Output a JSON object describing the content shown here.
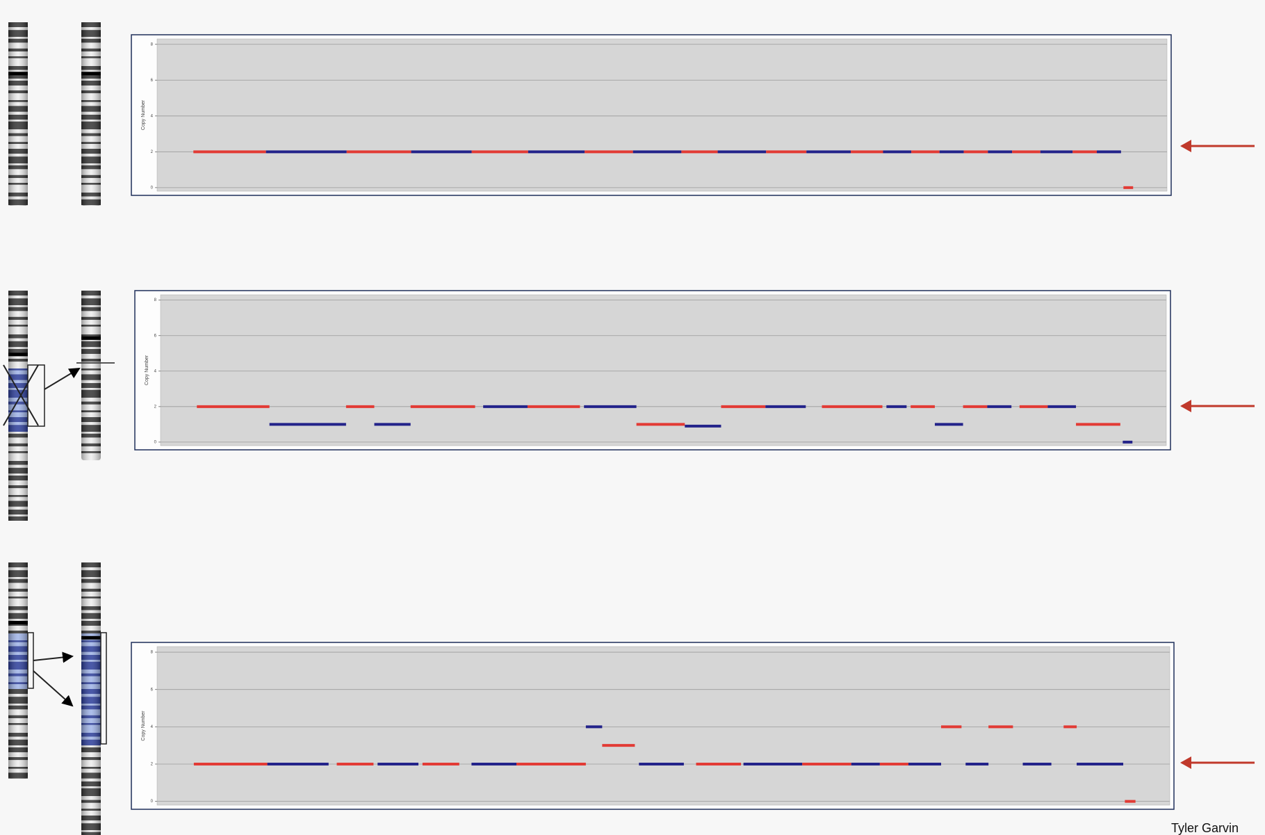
{
  "chart_data": [
    {
      "type": "segment",
      "ylabel": "Copy Number",
      "ylim": [
        -0.2,
        8.3
      ],
      "yticks": [
        0,
        2,
        4,
        6,
        8
      ],
      "grid": true,
      "xlim": [
        195,
        1447
      ],
      "colors": [
        "#e23b35",
        "#23238a"
      ],
      "segments": {
        "start": [
          240,
          330,
          430,
          510,
          585,
          655,
          725,
          785,
          845,
          890,
          950,
          1000,
          1055,
          1095,
          1130,
          1165,
          1195,
          1225,
          1255,
          1290,
          1330,
          1360,
          1393
        ],
        "end": [
          330,
          430,
          510,
          585,
          655,
          725,
          785,
          845,
          890,
          950,
          1000,
          1055,
          1095,
          1130,
          1165,
          1195,
          1225,
          1255,
          1290,
          1330,
          1360,
          1390,
          1405
        ],
        "values": [
          2,
          2,
          2,
          2,
          2,
          2,
          2,
          2,
          2,
          2,
          2,
          2,
          2,
          2,
          2,
          2,
          2,
          2,
          2,
          2,
          2,
          2,
          0
        ]
      }
    },
    {
      "type": "segment",
      "ylabel": "Copy Number",
      "ylim": [
        -0.2,
        8.3
      ],
      "yticks": [
        0,
        2,
        4,
        6,
        8
      ],
      "grid": true,
      "xlim": [
        200,
        1447
      ],
      "colors": [
        "#e23b35",
        "#23238a"
      ],
      "segments": {
        "start": [
          245,
          335,
          430,
          465,
          510,
          600,
          655,
          725,
          790,
          850,
          895,
          950,
          1020,
          1100,
          1130,
          1160,
          1195,
          1225,
          1265,
          1300,
          1335,
          1393
        ],
        "end": [
          335,
          430,
          465,
          510,
          590,
          655,
          720,
          790,
          850,
          895,
          950,
          1000,
          1095,
          1125,
          1160,
          1195,
          1225,
          1255,
          1300,
          1335,
          1390,
          1405
        ],
        "values": [
          2,
          1,
          2,
          1,
          2,
          2,
          2,
          2,
          1,
          0.9,
          2,
          2,
          2,
          2,
          2,
          1,
          2,
          2,
          2,
          2,
          1,
          0
        ]
      }
    },
    {
      "type": "segment",
      "ylabel": "Copy Number",
      "ylim": [
        -0.2,
        8.3
      ],
      "yticks": [
        0,
        2,
        4,
        6,
        8
      ],
      "grid": true,
      "xlim": [
        210,
        1450
      ],
      "colors": [
        "#e23b35",
        "#23238a"
      ],
      "segments": {
        "start": [
          255,
          345,
          430,
          480,
          535,
          595,
          650,
          735,
          755,
          800,
          870,
          928,
          1000,
          1060,
          1095,
          1130,
          1170,
          1200,
          1228,
          1270,
          1320,
          1336,
          1395
        ],
        "end": [
          345,
          420,
          475,
          530,
          580,
          650,
          735,
          755,
          795,
          855,
          925,
          1000,
          1060,
          1095,
          1130,
          1170,
          1195,
          1228,
          1258,
          1305,
          1336,
          1393,
          1408
        ],
        "values": [
          2,
          2,
          2,
          2,
          2,
          2,
          2,
          4,
          3,
          2,
          2,
          2,
          2,
          2,
          2,
          2,
          4,
          2,
          4,
          2,
          4,
          2,
          0
        ]
      }
    }
  ],
  "credit": "Tyler Garvin"
}
